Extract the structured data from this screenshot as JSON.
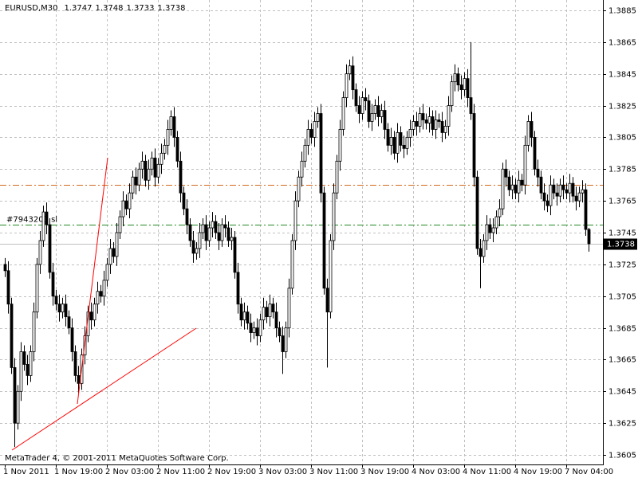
{
  "chart_data": {
    "type": "candlestick",
    "symbol": "EURUSD,M30",
    "footer": "MetaTrader 4, © 2001-2011 MetaQuotes Software Corp.",
    "categories": [
      "1 Nov 2011",
      null,
      null,
      null,
      null,
      null,
      null,
      null,
      null,
      null,
      null,
      null,
      null,
      null,
      null,
      null,
      "1 Nov 19:00",
      null,
      null,
      null,
      null,
      null,
      null,
      null,
      null,
      null,
      null,
      null,
      null,
      null,
      null,
      null,
      "2 Nov 03:00",
      null,
      null,
      null,
      null,
      null,
      null,
      null,
      null,
      null,
      null,
      null,
      null,
      null,
      null,
      null,
      "2 Nov 11:00",
      null,
      null,
      null,
      null,
      null,
      null,
      null,
      null,
      null,
      null,
      null,
      null,
      null,
      null,
      null,
      "2 Nov 19:00",
      null,
      null,
      null,
      null,
      null,
      null,
      null,
      null,
      null,
      null,
      null,
      null,
      null,
      null,
      null,
      "3 Nov 03:00",
      null,
      null,
      null,
      null,
      null,
      null,
      null,
      null,
      null,
      null,
      null,
      null,
      null,
      null,
      null,
      "3 Nov 11:00",
      null,
      null,
      null,
      null,
      null,
      null,
      null,
      null,
      null,
      null,
      null,
      null,
      null,
      null,
      null,
      "3 Nov 19:00",
      null,
      null,
      null,
      null,
      null,
      null,
      null,
      null,
      null,
      null,
      null,
      null,
      null,
      null,
      null,
      "4 Nov 03:00",
      null,
      null,
      null,
      null,
      null,
      null,
      null,
      null,
      null,
      null,
      null,
      null,
      null,
      null,
      null,
      "4 Nov 11:00",
      null,
      null,
      null,
      null,
      null,
      null,
      null,
      null,
      null,
      null,
      null,
      null,
      null,
      null,
      null,
      "4 Nov 19:00",
      null,
      null,
      null,
      null,
      null,
      null,
      null,
      null,
      null,
      null,
      null,
      null,
      null,
      null,
      null,
      "7 Nov 04:00",
      null,
      null,
      null,
      null,
      null,
      null,
      null
    ],
    "open": [
      1.3725,
      1.3721,
      1.37,
      1.366,
      1.3625,
      1.3645,
      1.367,
      1.3662,
      1.3655,
      1.367,
      1.3695,
      1.3725,
      1.374,
      1.3758,
      1.375,
      1.372,
      1.3705,
      1.37,
      1.3695,
      1.37,
      1.3692,
      1.3685,
      1.367,
      1.3655,
      1.365,
      1.3668,
      1.368,
      1.3695,
      1.369,
      1.37,
      1.3708,
      1.3705,
      1.3715,
      1.3725,
      1.3735,
      1.373,
      1.3745,
      1.3755,
      1.3765,
      1.376,
      1.377,
      1.378,
      1.3775,
      1.3785,
      1.379,
      1.3778,
      1.3785,
      1.3792,
      1.378,
      1.3788,
      1.3795,
      1.38,
      1.381,
      1.3818,
      1.3805,
      1.379,
      1.377,
      1.376,
      1.375,
      1.374,
      1.3732,
      1.3735,
      1.3745,
      1.375,
      1.374,
      1.3748,
      1.3752,
      1.3745,
      1.374,
      1.375,
      1.3748,
      1.374,
      1.3742,
      1.372,
      1.37,
      1.369,
      1.3695,
      1.3688,
      1.3682,
      1.3685,
      1.368,
      1.369,
      1.3698,
      1.3692,
      1.37,
      1.3695,
      1.3685,
      1.368,
      1.367,
      1.3685,
      1.371,
      1.374,
      1.3765,
      1.378,
      1.379,
      1.38,
      1.381,
      1.3805,
      1.3815,
      1.382,
      1.377,
      1.371,
      1.3695,
      1.374,
      1.377,
      1.379,
      1.381,
      1.383,
      1.3845,
      1.385,
      1.3835,
      1.3825,
      1.382,
      1.383,
      1.3828,
      1.3815,
      1.382,
      1.3825,
      1.3818,
      1.3822,
      1.381,
      1.38,
      1.3805,
      1.3795,
      1.3808,
      1.38,
      1.3798,
      1.3805,
      1.381,
      1.3815,
      1.3812,
      1.382,
      1.3816,
      1.3814,
      1.3818,
      1.381,
      1.3816,
      1.3815,
      1.3808,
      1.3812,
      1.3825,
      1.384,
      1.3845,
      1.3838,
      1.3835,
      1.3842,
      1.383,
      1.382,
      1.378,
      1.3735,
      1.373,
      1.374,
      1.375,
      1.3745,
      1.3748,
      1.3755,
      1.376,
      1.3785,
      1.378,
      1.3772,
      1.3775,
      1.377,
      1.3778,
      1.3775,
      1.38,
      1.3815,
      1.3805,
      1.3785,
      1.378,
      1.377,
      1.3765,
      1.3762,
      1.3775,
      1.377,
      1.3768,
      1.3775,
      1.3772,
      1.377,
      1.3776,
      1.3768,
      1.3765,
      1.377,
      1.3772,
      1.3747
    ],
    "high": [
      1.3729,
      1.3727,
      1.3704,
      1.3666,
      1.3649,
      1.3676,
      1.3674,
      1.3668,
      1.3674,
      1.3701,
      1.3729,
      1.3746,
      1.3762,
      1.3764,
      1.3754,
      1.3726,
      1.3709,
      1.3706,
      1.3704,
      1.3706,
      1.3696,
      1.3691,
      1.3674,
      1.3661,
      1.3672,
      1.3686,
      1.3699,
      1.3701,
      1.3704,
      1.3714,
      1.3712,
      1.3721,
      1.3729,
      1.3741,
      1.3739,
      1.3751,
      1.3759,
      1.3771,
      1.3769,
      1.3776,
      1.3784,
      1.3786,
      1.3789,
      1.3796,
      1.3794,
      1.3791,
      1.3796,
      1.3798,
      1.3792,
      1.3801,
      1.3804,
      1.3816,
      1.3822,
      1.3824,
      1.3809,
      1.3796,
      1.3774,
      1.3766,
      1.3754,
      1.3746,
      1.3739,
      1.3751,
      1.3754,
      1.3756,
      1.3752,
      1.3758,
      1.3756,
      1.3751,
      1.3754,
      1.3756,
      1.3752,
      1.3748,
      1.3746,
      1.3726,
      1.3704,
      1.3701,
      1.3699,
      1.3694,
      1.3689,
      1.3691,
      1.3694,
      1.3704,
      1.3702,
      1.3706,
      1.3704,
      1.3701,
      1.3689,
      1.3686,
      1.3689,
      1.3716,
      1.3744,
      1.3771,
      1.3784,
      1.3796,
      1.3804,
      1.3816,
      1.3814,
      1.3821,
      1.3824,
      1.3826,
      1.3774,
      1.3716,
      1.3744,
      1.3776,
      1.3794,
      1.3816,
      1.3834,
      1.3851,
      1.3854,
      1.3856,
      1.3839,
      1.3831,
      1.3834,
      1.3836,
      1.3832,
      1.3826,
      1.3829,
      1.3831,
      1.3826,
      1.3828,
      1.3814,
      1.3811,
      1.3809,
      1.3814,
      1.3812,
      1.3806,
      1.3809,
      1.3816,
      1.3819,
      1.3821,
      1.3824,
      1.3826,
      1.382,
      1.3824,
      1.3822,
      1.3822,
      1.382,
      1.3821,
      1.3816,
      1.3831,
      1.3844,
      1.3851,
      1.3849,
      1.3844,
      1.3846,
      1.3848,
      1.3865,
      1.3826,
      1.3784,
      1.3741,
      1.3744,
      1.3756,
      1.3754,
      1.3754,
      1.3759,
      1.3766,
      1.3789,
      1.3791,
      1.3784,
      1.3781,
      1.3779,
      1.3784,
      1.3782,
      1.3806,
      1.3819,
      1.3821,
      1.3809,
      1.3791,
      1.3784,
      1.3776,
      1.3769,
      1.3781,
      1.3779,
      1.3776,
      1.3779,
      1.3781,
      1.3776,
      1.3782,
      1.378,
      1.3774,
      1.3774,
      1.3778,
      1.3776,
      1.3748
    ],
    "low": [
      1.3717,
      1.3694,
      1.3656,
      1.361,
      1.3621,
      1.3639,
      1.3658,
      1.3649,
      1.3651,
      1.3664,
      1.3691,
      1.3719,
      1.3736,
      1.3744,
      1.3716,
      1.3699,
      1.3696,
      1.3689,
      1.3691,
      1.3686,
      1.3681,
      1.3664,
      1.3651,
      1.3644,
      1.3646,
      1.3662,
      1.3676,
      1.3684,
      1.3686,
      1.3694,
      1.3701,
      1.3699,
      1.3711,
      1.3719,
      1.3726,
      1.3724,
      1.3741,
      1.3749,
      1.3756,
      1.3754,
      1.3766,
      1.3769,
      1.3771,
      1.3779,
      1.3774,
      1.3772,
      1.3781,
      1.3774,
      1.3776,
      1.3782,
      1.3791,
      1.3794,
      1.3806,
      1.3799,
      1.3786,
      1.3764,
      1.3756,
      1.3744,
      1.3736,
      1.3726,
      1.3728,
      1.3729,
      1.3741,
      1.3734,
      1.3736,
      1.3742,
      1.3741,
      1.3734,
      1.3736,
      1.3742,
      1.3736,
      1.3734,
      1.3716,
      1.3694,
      1.3686,
      1.3684,
      1.3684,
      1.3676,
      1.3678,
      1.3674,
      1.3676,
      1.3684,
      1.3688,
      1.3686,
      1.3691,
      1.3679,
      1.3676,
      1.3656,
      1.3666,
      1.3679,
      1.3706,
      1.3734,
      1.3761,
      1.3774,
      1.3786,
      1.3794,
      1.3801,
      1.3799,
      1.3811,
      1.3764,
      1.3706,
      1.366,
      1.3691,
      1.3734,
      1.3766,
      1.3784,
      1.3806,
      1.3824,
      1.3841,
      1.3829,
      1.3821,
      1.3814,
      1.3816,
      1.3822,
      1.3811,
      1.3809,
      1.3816,
      1.3812,
      1.3814,
      1.3804,
      1.3796,
      1.3794,
      1.3791,
      1.3789,
      1.3796,
      1.3792,
      1.3794,
      1.3799,
      1.3806,
      1.3806,
      1.3808,
      1.381,
      1.381,
      1.3808,
      1.3806,
      1.3804,
      1.3811,
      1.3802,
      1.3804,
      1.3806,
      1.3821,
      1.3834,
      1.3834,
      1.3829,
      1.3831,
      1.3824,
      1.3816,
      1.3774,
      1.3731,
      1.371,
      1.3726,
      1.3734,
      1.3741,
      1.3739,
      1.3744,
      1.3749,
      1.3756,
      1.3774,
      1.3768,
      1.3766,
      1.3766,
      1.3764,
      1.3771,
      1.3769,
      1.3796,
      1.3799,
      1.3781,
      1.3774,
      1.3766,
      1.3759,
      1.3758,
      1.3756,
      1.3766,
      1.3762,
      1.3764,
      1.3766,
      1.3766,
      1.3764,
      1.3764,
      1.3759,
      1.3761,
      1.3764,
      1.3743,
      1.3733
    ],
    "close": [
      1.3721,
      1.37,
      1.366,
      1.3625,
      1.3645,
      1.367,
      1.3662,
      1.3655,
      1.367,
      1.3695,
      1.3725,
      1.374,
      1.3758,
      1.375,
      1.372,
      1.3705,
      1.37,
      1.3695,
      1.37,
      1.3692,
      1.3685,
      1.367,
      1.3655,
      1.365,
      1.3668,
      1.368,
      1.3695,
      1.369,
      1.37,
      1.3708,
      1.3705,
      1.3715,
      1.3725,
      1.3735,
      1.373,
      1.3745,
      1.3755,
      1.3765,
      1.376,
      1.377,
      1.378,
      1.3775,
      1.3785,
      1.379,
      1.3778,
      1.3785,
      1.3792,
      1.378,
      1.3788,
      1.3795,
      1.38,
      1.381,
      1.3818,
      1.3805,
      1.379,
      1.377,
      1.376,
      1.375,
      1.374,
      1.3732,
      1.3735,
      1.3745,
      1.375,
      1.374,
      1.3748,
      1.3752,
      1.3745,
      1.374,
      1.375,
      1.3748,
      1.374,
      1.3742,
      1.372,
      1.37,
      1.369,
      1.3695,
      1.3688,
      1.3682,
      1.3685,
      1.368,
      1.369,
      1.3698,
      1.3692,
      1.37,
      1.3695,
      1.3685,
      1.368,
      1.367,
      1.3685,
      1.371,
      1.374,
      1.3765,
      1.378,
      1.379,
      1.38,
      1.381,
      1.3805,
      1.3815,
      1.382,
      1.377,
      1.371,
      1.3695,
      1.374,
      1.377,
      1.379,
      1.381,
      1.383,
      1.3845,
      1.385,
      1.3835,
      1.3825,
      1.382,
      1.383,
      1.3828,
      1.3815,
      1.382,
      1.3825,
      1.3818,
      1.3822,
      1.381,
      1.38,
      1.3805,
      1.3795,
      1.3808,
      1.38,
      1.3798,
      1.3805,
      1.381,
      1.3815,
      1.3812,
      1.382,
      1.3816,
      1.3814,
      1.3818,
      1.381,
      1.3816,
      1.3815,
      1.3808,
      1.3812,
      1.3825,
      1.384,
      1.3845,
      1.3838,
      1.3835,
      1.3842,
      1.383,
      1.382,
      1.378,
      1.3735,
      1.373,
      1.374,
      1.375,
      1.3745,
      1.3748,
      1.3755,
      1.376,
      1.3785,
      1.378,
      1.3772,
      1.3775,
      1.377,
      1.3778,
      1.3775,
      1.38,
      1.3815,
      1.3805,
      1.3785,
      1.378,
      1.377,
      1.3765,
      1.3762,
      1.3775,
      1.377,
      1.3768,
      1.3775,
      1.3772,
      1.377,
      1.3776,
      1.3768,
      1.3765,
      1.377,
      1.3772,
      1.3747,
      1.3738
    ],
    "ylim": [
      1.3599,
      1.38915
    ],
    "yticks": [
      1.3605,
      1.3625,
      1.3645,
      1.3665,
      1.3685,
      1.3705,
      1.3725,
      1.3745,
      1.3765,
      1.3785,
      1.3805,
      1.3825,
      1.3845,
      1.3865,
      1.3885
    ],
    "grid": true,
    "up_color": "#ffffff",
    "down_color": "#000000",
    "levels": [
      {
        "value": 1.3775,
        "color": "#d2691e"
      },
      {
        "value": 1.375,
        "color": "#228b22",
        "label": "#7943207 sl"
      }
    ]
  }
}
